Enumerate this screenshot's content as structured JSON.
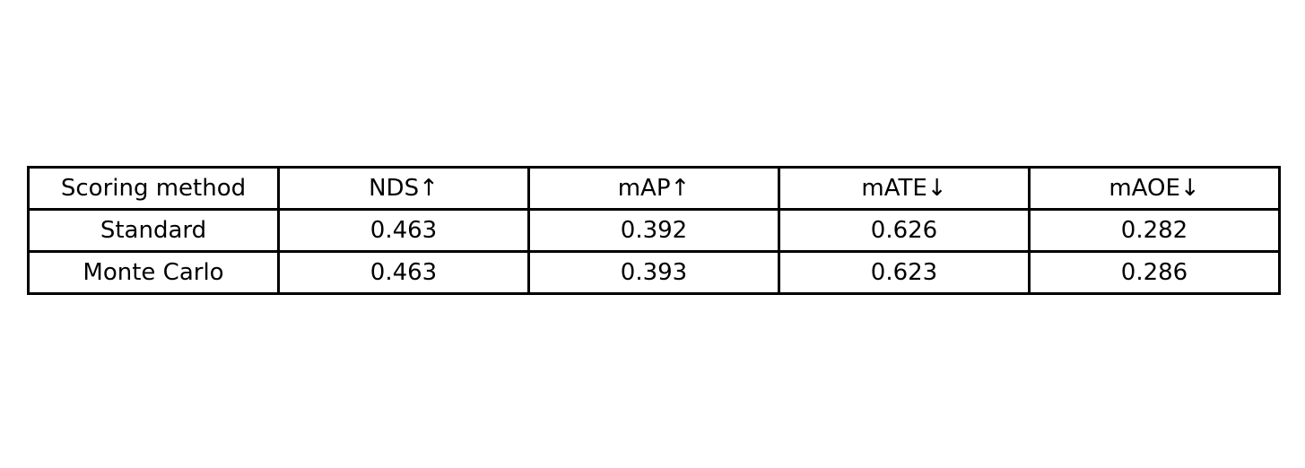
{
  "chart_data": {
    "type": "table",
    "columns": [
      "Scoring method",
      "NDS↑",
      "mAP↑",
      "mATE↓",
      "mAOE↓"
    ],
    "rows": [
      [
        "Standard",
        "0.463",
        "0.392",
        "0.626",
        "0.282"
      ],
      [
        "Monte Carlo",
        "0.463",
        "0.393",
        "0.623",
        "0.286"
      ]
    ],
    "border_color": "#000000",
    "background": "#ffffff"
  }
}
